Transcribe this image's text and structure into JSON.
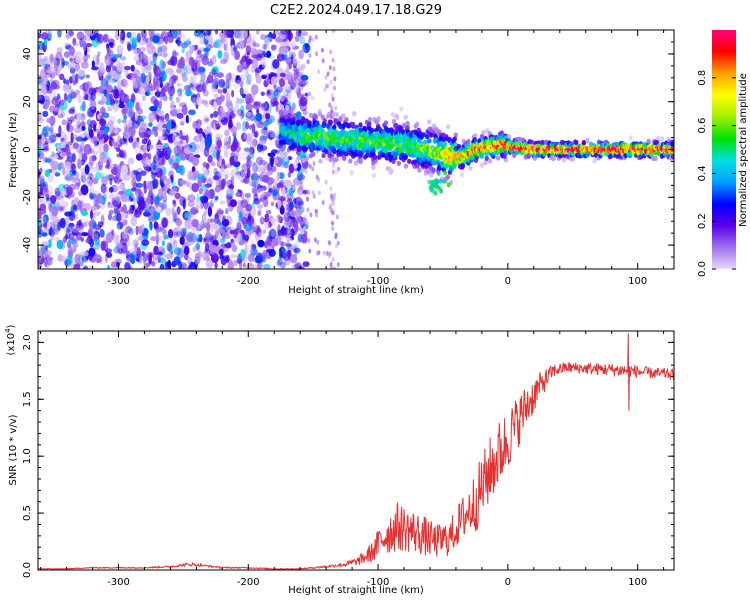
{
  "title": "C2E2.2024.049.17.18.G29",
  "chart_data": [
    {
      "type": "heatmap",
      "xlabel": "Height of straight line (km)",
      "ylabel": "Frequency (Hz)",
      "xlim": [
        -362,
        128
      ],
      "ylim": [
        -50,
        50
      ],
      "xticks": [
        -300,
        -200,
        -100,
        0,
        100
      ],
      "yticks": [
        -40,
        -20,
        0,
        20,
        40
      ],
      "grid": false,
      "colorbar": {
        "label": "Normalized spectral amplitude",
        "range": [
          0,
          1
        ],
        "ticks": [
          0.0,
          0.2,
          0.4,
          0.6,
          0.8
        ],
        "colormap": [
          "#e8d8f8",
          "#a070f0",
          "#5a00e8",
          "#0000ff",
          "#00a0ff",
          "#00e0e0",
          "#00e000",
          "#a0f000",
          "#ffff00",
          "#ffa000",
          "#ff0000",
          "#ff0080"
        ]
      },
      "regions": [
        {
          "name": "noise",
          "x": [
            -362,
            -155
          ],
          "y": [
            -50,
            50
          ],
          "amplitude": 0.25
        },
        {
          "name": "sparse",
          "x": [
            -155,
            -130
          ],
          "y": [
            -50,
            50
          ],
          "amplitude": 0.1
        },
        {
          "name": "signal",
          "trace_x": [
            -175,
            -160,
            -140,
            -120,
            -100,
            -80,
            -60,
            -45,
            -35,
            -25,
            -15,
            -5,
            5,
            20,
            60,
            128
          ],
          "trace_y": [
            8,
            6,
            5,
            4,
            3,
            2,
            0,
            -3,
            -3,
            0,
            1,
            2,
            1,
            0,
            0,
            0
          ],
          "amplitude": [
            0.45,
            0.55,
            0.6,
            0.6,
            0.6,
            0.6,
            0.65,
            0.8,
            0.85,
            0.9,
            0.95,
            0.95,
            1.0,
            1.0,
            1.0,
            1.0
          ]
        }
      ]
    },
    {
      "type": "line",
      "xlabel": "Height of straight line (km)",
      "ylabel": "SNR (10 * v/v)",
      "y_multiplier_label": "(x10",
      "y_multiplier_exp": "4",
      "y_multiplier_close": ")",
      "xlim": [
        -362,
        128
      ],
      "ylim": [
        0,
        2.1
      ],
      "xticks": [
        -300,
        -200,
        -100,
        0,
        100
      ],
      "yticks": [
        0.0,
        0.5,
        1.0,
        1.5,
        2.0
      ],
      "grid": false,
      "series": [
        {
          "color": "#e83030",
          "x": [
            -362,
            -340,
            -320,
            -300,
            -280,
            -260,
            -245,
            -235,
            -220,
            -200,
            -180,
            -160,
            -140,
            -125,
            -115,
            -105,
            -95,
            -85,
            -75,
            -65,
            -55,
            -45,
            -35,
            -25,
            -15,
            -5,
            5,
            15,
            25,
            35,
            45,
            60,
            80,
            95,
            110,
            128
          ],
          "y": [
            0.01,
            0.01,
            0.02,
            0.02,
            0.02,
            0.03,
            0.05,
            0.04,
            0.02,
            0.02,
            0.01,
            0.01,
            0.03,
            0.05,
            0.08,
            0.15,
            0.3,
            0.38,
            0.35,
            0.3,
            0.25,
            0.28,
            0.45,
            0.6,
            0.85,
            1.05,
            1.25,
            1.45,
            1.62,
            1.75,
            1.78,
            1.77,
            1.76,
            1.75,
            1.73,
            1.72
          ],
          "noise": [
            0.003,
            0.003,
            0.004,
            0.005,
            0.005,
            0.008,
            0.015,
            0.01,
            0.006,
            0.005,
            0.004,
            0.004,
            0.01,
            0.02,
            0.04,
            0.09,
            0.18,
            0.22,
            0.2,
            0.18,
            0.15,
            0.16,
            0.2,
            0.28,
            0.3,
            0.3,
            0.25,
            0.2,
            0.12,
            0.06,
            0.05,
            0.05,
            0.06,
            0.06,
            0.05,
            0.05
          ]
        }
      ]
    }
  ]
}
